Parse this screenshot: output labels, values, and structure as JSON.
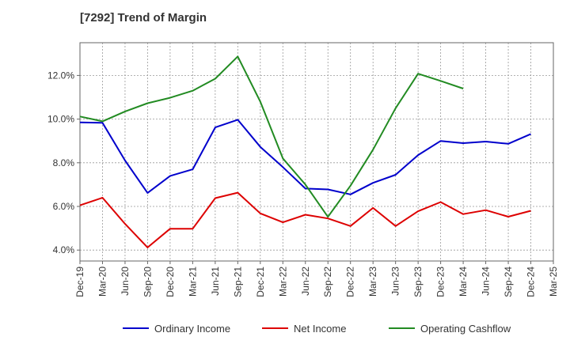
{
  "chart_data": {
    "type": "line",
    "title": "[7292]  Trend of Margin",
    "xlabel": "",
    "ylabel": "",
    "categories": [
      "Dec-19",
      "Mar-20",
      "Jun-20",
      "Sep-20",
      "Dec-20",
      "Mar-21",
      "Jun-21",
      "Sep-21",
      "Dec-21",
      "Mar-22",
      "Jun-22",
      "Sep-22",
      "Dec-22",
      "Mar-23",
      "Jun-23",
      "Sep-23",
      "Dec-23",
      "Mar-24",
      "Jun-24",
      "Sep-24",
      "Dec-24",
      "Mar-25"
    ],
    "ylim": [
      3.5,
      13.5
    ],
    "yticks": [
      4.0,
      6.0,
      8.0,
      10.0,
      12.0
    ],
    "ytick_labels": [
      "4.0%",
      "6.0%",
      "8.0%",
      "10.0%",
      "12.0%"
    ],
    "grid": true,
    "legend_position": "bottom",
    "series": [
      {
        "name": "Ordinary Income",
        "color": "#0000cc",
        "values": [
          9.85,
          9.83,
          8.1,
          6.62,
          7.4,
          7.7,
          9.62,
          9.97,
          8.73,
          7.8,
          6.82,
          6.78,
          6.55,
          7.08,
          7.45,
          8.35,
          9.0,
          8.9,
          8.97,
          8.87,
          9.32,
          null
        ]
      },
      {
        "name": "Net Income",
        "color": "#dd0000",
        "values": [
          6.05,
          6.4,
          5.2,
          4.12,
          4.98,
          4.98,
          6.38,
          6.63,
          5.68,
          5.27,
          5.62,
          5.45,
          5.1,
          5.93,
          5.1,
          5.78,
          6.2,
          5.65,
          5.83,
          5.53,
          5.8,
          null
        ]
      },
      {
        "name": "Operating Cashflow",
        "color": "#228b22",
        "values": [
          10.12,
          9.9,
          10.35,
          10.73,
          10.98,
          11.3,
          11.85,
          12.87,
          10.8,
          8.2,
          7.0,
          5.52,
          6.95,
          8.6,
          10.5,
          12.08,
          11.75,
          11.4,
          null,
          null,
          null,
          null
        ]
      }
    ]
  }
}
